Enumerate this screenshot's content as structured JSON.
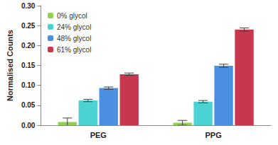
{
  "chart_data": {
    "type": "bar",
    "y_label": "Normalised Counts",
    "categories": [
      "PEG",
      "PPG"
    ],
    "series": [
      {
        "name": "0% glycol",
        "color": "#92D050",
        "values": [
          0.008,
          0.006
        ],
        "errors": [
          0.01,
          0.006
        ]
      },
      {
        "name": "24% glycol",
        "color": "#4BD2D2",
        "values": [
          0.062,
          0.059
        ],
        "errors": [
          0.003,
          0.003
        ]
      },
      {
        "name": "48% glycol",
        "color": "#4A8FE2",
        "values": [
          0.093,
          0.149
        ],
        "errors": [
          0.003,
          0.004
        ]
      },
      {
        "name": "61% glycol",
        "color": "#C8374F",
        "values": [
          0.128,
          0.24
        ],
        "errors": [
          0.003,
          0.004
        ]
      }
    ],
    "ylim": [
      0,
      0.3
    ],
    "yticks": [
      {
        "value": 0,
        "label": "0.00"
      },
      {
        "value": 0.05,
        "label": "0.05"
      },
      {
        "value": 0.1,
        "label": "0.10"
      },
      {
        "value": 0.15,
        "label": "0.15"
      },
      {
        "value": 0.2,
        "label": "0.20"
      },
      {
        "value": 0.25,
        "label": "0.25"
      },
      {
        "value": 0.3,
        "label": "0.30"
      }
    ],
    "grid": false,
    "legend": "upper left"
  }
}
